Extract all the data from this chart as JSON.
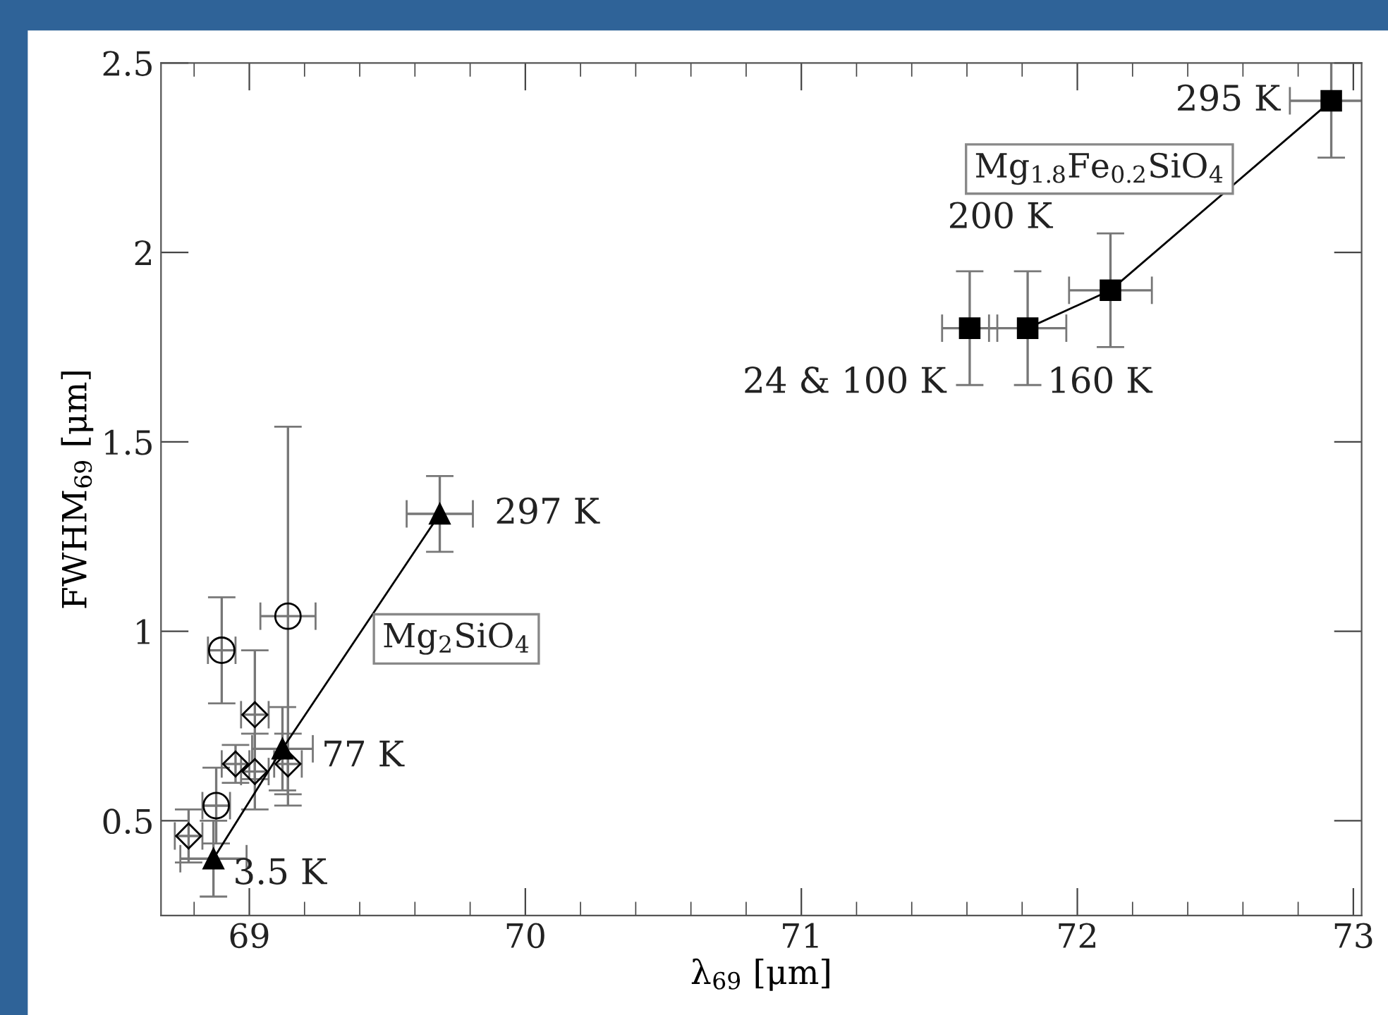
{
  "chart_data": {
    "type": "scatter",
    "xlabel": "λ$_{69}$ [μm]",
    "ylabel": "FWHM$_{69}$ [μm]",
    "xlim": [
      68.68,
      73.03
    ],
    "ylim": [
      0.25,
      2.5
    ],
    "xticks": [
      69,
      70,
      71,
      72,
      73
    ],
    "yticks": [
      0.5,
      1,
      1.5,
      2,
      2.5
    ],
    "grid": false,
    "series": [
      {
        "type": "line",
        "marker": "triangle",
        "color": "#000000",
        "x": [
          68.87,
          69.12,
          69.69
        ],
        "values": [
          0.4,
          0.69,
          1.31
        ],
        "errors": [
          0.1,
          0.11,
          0.1
        ],
        "xerrors": [
          0.12,
          0.11,
          0.12
        ]
      },
      {
        "marker": "square",
        "color": "#000000",
        "x": [
          71.61
        ],
        "values": [
          1.8
        ],
        "errors": [
          0.15
        ],
        "xerrors": [
          0.1
        ]
      },
      {
        "type": "line",
        "marker": "square",
        "color": "#000000",
        "x": [
          71.82,
          72.12,
          72.92
        ],
        "values": [
          1.8,
          1.9,
          2.4
        ],
        "errors": [
          0.15,
          0.15,
          0.15
        ],
        "xerrors": [
          0.14,
          0.15,
          0.15
        ]
      },
      {
        "marker": "circle",
        "color": "#000000",
        "x": [
          68.9,
          69.14,
          68.88
        ],
        "values": [
          0.95,
          1.04,
          0.54
        ],
        "errors": [
          0.14,
          0.5,
          0.1
        ],
        "xerrors": [
          0.05,
          0.1,
          0.05
        ]
      },
      {
        "marker": "diamond",
        "color": "#000000",
        "x": [
          68.78,
          69.02,
          68.95,
          69.02,
          69.14
        ],
        "values": [
          0.46,
          0.78,
          0.65,
          0.63,
          0.65
        ],
        "errors": [
          0.07,
          0.17,
          0.05,
          0.1,
          0.08
        ],
        "xerrors": [
          0.05,
          0.05,
          0.05,
          0.05,
          0.05
        ]
      }
    ],
    "annotations": [
      {
        "text": "3.5 K",
        "x": 68.87,
        "y": 0.4
      },
      {
        "text": "77 K",
        "x": 69.12,
        "y": 0.69
      },
      {
        "text": "297 K",
        "x": 69.69,
        "y": 1.31
      },
      {
        "text": "24 & 100 K",
        "x": 71.61,
        "y": 1.8
      },
      {
        "text": "160 K",
        "x": 71.82,
        "y": 1.8
      },
      "200 K",
      {
        "text": "295 K",
        "x": 72.92,
        "y": 2.4
      },
      "Mg$_{2}$SiO$_{4}$",
      "Mg$_{1.8}$Fe$_{0.2}$SiO$_{4}$"
    ]
  }
}
